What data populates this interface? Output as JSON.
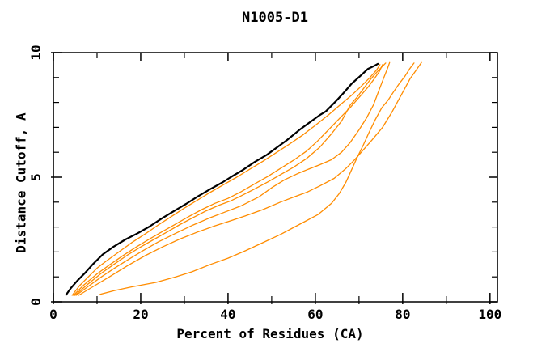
{
  "figure": {
    "title": "N1005-D1"
  },
  "chart_data": {
    "type": "line",
    "title": "N1005-D1",
    "xlabel": "Percent of Residues (CA)",
    "ylabel": "Distance Cutoff, A",
    "xlim": [
      0,
      101.7
    ],
    "ylim": [
      0,
      10
    ],
    "x_major_ticks": [
      0,
      20,
      40,
      60,
      80,
      100
    ],
    "x_minor_ticks": [
      10,
      30,
      50,
      70,
      90
    ],
    "y_major_ticks": [
      0,
      5,
      10
    ],
    "y_minor_ticks": [
      1,
      2,
      3,
      4,
      6,
      7,
      8,
      9
    ],
    "grid": false,
    "legend": "none",
    "axis_color": "#000000",
    "orange_color": "#ff8c00",
    "series": [
      {
        "name": "black-reference-curve",
        "color": "#000000",
        "width": 2.2,
        "points": [
          [
            2.9,
            0.28
          ],
          [
            4,
            0.55
          ],
          [
            5.5,
            0.85
          ],
          [
            7.2,
            1.15
          ],
          [
            9,
            1.5
          ],
          [
            10.4,
            1.74
          ],
          [
            11.3,
            1.9
          ],
          [
            13.7,
            2.2
          ],
          [
            16.5,
            2.5
          ],
          [
            19.3,
            2.75
          ],
          [
            22,
            3.02
          ],
          [
            24.8,
            3.34
          ],
          [
            27.6,
            3.64
          ],
          [
            30.4,
            3.93
          ],
          [
            33.1,
            4.23
          ],
          [
            35.9,
            4.52
          ],
          [
            38.7,
            4.79
          ],
          [
            40.6,
            5.0
          ],
          [
            43.3,
            5.28
          ],
          [
            46.1,
            5.61
          ],
          [
            48.9,
            5.9
          ],
          [
            50.7,
            6.13
          ],
          [
            53.5,
            6.49
          ],
          [
            56.3,
            6.89
          ],
          [
            59.1,
            7.25
          ],
          [
            60.9,
            7.48
          ],
          [
            62.4,
            7.64
          ],
          [
            64.6,
            8.03
          ],
          [
            66.5,
            8.39
          ],
          [
            68.3,
            8.75
          ],
          [
            70.2,
            9.05
          ],
          [
            72,
            9.34
          ],
          [
            73.3,
            9.45
          ],
          [
            74.3,
            9.55
          ]
        ]
      },
      {
        "name": "orange-curve-1",
        "color": "#ff8c00",
        "width": 1.3,
        "points": [
          [
            4.3,
            0.26
          ],
          [
            6,
            0.65
          ],
          [
            8,
            1.0
          ],
          [
            10,
            1.35
          ],
          [
            12,
            1.62
          ],
          [
            15,
            2.0
          ],
          [
            18,
            2.38
          ],
          [
            21,
            2.72
          ],
          [
            24,
            3.08
          ],
          [
            27,
            3.42
          ],
          [
            30,
            3.76
          ],
          [
            33,
            4.08
          ],
          [
            36,
            4.4
          ],
          [
            39,
            4.7
          ],
          [
            42,
            5.0
          ],
          [
            45,
            5.32
          ],
          [
            48,
            5.64
          ],
          [
            51,
            5.98
          ],
          [
            54,
            6.32
          ],
          [
            57,
            6.68
          ],
          [
            60,
            7.08
          ],
          [
            63,
            7.5
          ],
          [
            66,
            7.95
          ],
          [
            68.5,
            8.32
          ],
          [
            70.5,
            8.65
          ],
          [
            72.5,
            9.0
          ],
          [
            74,
            9.3
          ],
          [
            74.8,
            9.52
          ]
        ]
      },
      {
        "name": "orange-curve-2",
        "color": "#ff8c00",
        "width": 1.3,
        "points": [
          [
            4.6,
            0.26
          ],
          [
            7,
            0.68
          ],
          [
            10,
            1.12
          ],
          [
            13,
            1.5
          ],
          [
            16,
            1.86
          ],
          [
            19,
            2.2
          ],
          [
            22,
            2.52
          ],
          [
            25,
            2.82
          ],
          [
            28,
            3.12
          ],
          [
            31,
            3.42
          ],
          [
            34,
            3.7
          ],
          [
            37,
            3.95
          ],
          [
            40,
            4.15
          ],
          [
            43,
            4.42
          ],
          [
            46,
            4.72
          ],
          [
            49,
            5.02
          ],
          [
            52,
            5.35
          ],
          [
            55,
            5.68
          ],
          [
            58,
            6.05
          ],
          [
            60.5,
            6.45
          ],
          [
            63,
            6.9
          ],
          [
            65.5,
            7.35
          ],
          [
            68,
            7.8
          ],
          [
            70,
            8.2
          ],
          [
            72,
            8.6
          ],
          [
            73.5,
            8.95
          ],
          [
            74.7,
            9.25
          ],
          [
            75.4,
            9.52
          ]
        ]
      },
      {
        "name": "orange-curve-3",
        "color": "#ff8c00",
        "width": 1.3,
        "points": [
          [
            4.9,
            0.26
          ],
          [
            8,
            0.72
          ],
          [
            11,
            1.15
          ],
          [
            14,
            1.52
          ],
          [
            17,
            1.88
          ],
          [
            20,
            2.2
          ],
          [
            23,
            2.5
          ],
          [
            26,
            2.8
          ],
          [
            29,
            3.1
          ],
          [
            32,
            3.38
          ],
          [
            35,
            3.65
          ],
          [
            38,
            3.88
          ],
          [
            40.6,
            4.05
          ],
          [
            43,
            4.25
          ],
          [
            46,
            4.52
          ],
          [
            49,
            4.8
          ],
          [
            52,
            5.1
          ],
          [
            55,
            5.4
          ],
          [
            58,
            5.75
          ],
          [
            61,
            6.2
          ],
          [
            63.5,
            6.7
          ],
          [
            66,
            7.25
          ],
          [
            68,
            7.9
          ],
          [
            69.5,
            8.2
          ],
          [
            71,
            8.55
          ],
          [
            72.5,
            8.9
          ],
          [
            74,
            9.2
          ],
          [
            75.2,
            9.42
          ],
          [
            76.1,
            9.58
          ]
        ]
      },
      {
        "name": "orange-curve-4",
        "color": "#ff8c00",
        "width": 1.3,
        "points": [
          [
            5.2,
            0.26
          ],
          [
            8,
            0.62
          ],
          [
            11,
            1.0
          ],
          [
            14,
            1.35
          ],
          [
            17,
            1.68
          ],
          [
            20,
            2.0
          ],
          [
            24,
            2.4
          ],
          [
            28,
            2.75
          ],
          [
            32,
            3.08
          ],
          [
            36,
            3.38
          ],
          [
            39,
            3.58
          ],
          [
            43,
            3.85
          ],
          [
            47,
            4.2
          ],
          [
            50.2,
            4.6
          ],
          [
            53,
            4.9
          ],
          [
            56,
            5.15
          ],
          [
            58.1,
            5.3
          ],
          [
            61,
            5.5
          ],
          [
            63.7,
            5.7
          ],
          [
            66,
            6.0
          ],
          [
            68,
            6.4
          ],
          [
            70,
            6.9
          ],
          [
            71.8,
            7.4
          ],
          [
            73.3,
            7.9
          ],
          [
            74.6,
            8.5
          ],
          [
            75.8,
            9.05
          ],
          [
            76.6,
            9.4
          ],
          [
            77,
            9.6
          ]
        ]
      },
      {
        "name": "orange-curve-5",
        "color": "#ff8c00",
        "width": 1.3,
        "points": [
          [
            5.8,
            0.26
          ],
          [
            9,
            0.6
          ],
          [
            13,
            1.02
          ],
          [
            17,
            1.45
          ],
          [
            21,
            1.85
          ],
          [
            25,
            2.2
          ],
          [
            29,
            2.52
          ],
          [
            33,
            2.8
          ],
          [
            37,
            3.05
          ],
          [
            40.6,
            3.25
          ],
          [
            44,
            3.45
          ],
          [
            48,
            3.7
          ],
          [
            52,
            4.0
          ],
          [
            55,
            4.2
          ],
          [
            58.1,
            4.4
          ],
          [
            61,
            4.65
          ],
          [
            64.3,
            4.95
          ],
          [
            67,
            5.35
          ],
          [
            69,
            5.7
          ],
          [
            70.5,
            6.0
          ],
          [
            73,
            6.5
          ],
          [
            75.4,
            7.0
          ],
          [
            77.5,
            7.6
          ],
          [
            78.9,
            8.05
          ],
          [
            80.3,
            8.5
          ],
          [
            81.7,
            8.95
          ],
          [
            83.1,
            9.3
          ],
          [
            84.3,
            9.6
          ]
        ]
      },
      {
        "name": "orange-curve-6-sag",
        "color": "#ff8c00",
        "width": 1.3,
        "points": [
          [
            10.7,
            0.3
          ],
          [
            14,
            0.45
          ],
          [
            18,
            0.6
          ],
          [
            23.5,
            0.78
          ],
          [
            28,
            1.0
          ],
          [
            31.7,
            1.2
          ],
          [
            36,
            1.5
          ],
          [
            40,
            1.75
          ],
          [
            44,
            2.05
          ],
          [
            48.3,
            2.4
          ],
          [
            52,
            2.7
          ],
          [
            56.3,
            3.1
          ],
          [
            60.6,
            3.5
          ],
          [
            63.7,
            3.95
          ],
          [
            65.5,
            4.35
          ],
          [
            67,
            4.8
          ],
          [
            68.3,
            5.3
          ],
          [
            69.6,
            5.8
          ],
          [
            71,
            6.3
          ],
          [
            72.3,
            6.8
          ],
          [
            73.7,
            7.3
          ],
          [
            75.2,
            7.78
          ],
          [
            76.7,
            8.1
          ],
          [
            78,
            8.45
          ],
          [
            79.2,
            8.75
          ],
          [
            80.5,
            9.05
          ],
          [
            81.6,
            9.35
          ],
          [
            82.6,
            9.58
          ]
        ]
      }
    ]
  }
}
